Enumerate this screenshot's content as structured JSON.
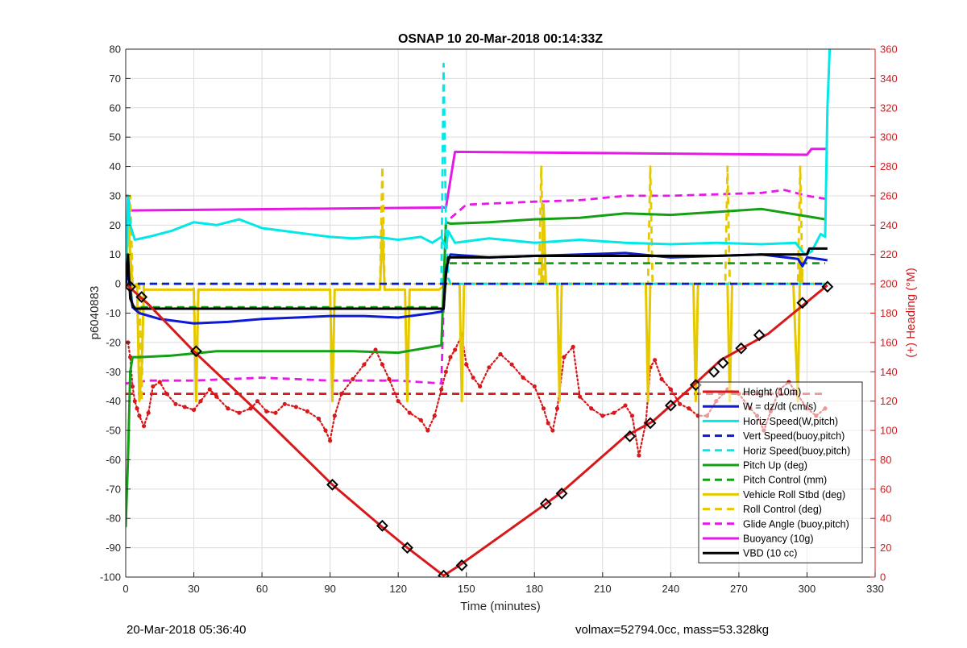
{
  "figure": {
    "footer_left": "20-Mar-2018 05:36:40",
    "footer_right": "volmax=52794.0cc, mass=53.328kg"
  },
  "chart_data": {
    "type": "line",
    "title": "OSNAP 10 20-Mar-2018 00:14:33Z",
    "xlabel": "Time (minutes)",
    "ylabel": "p6040883",
    "y2label": "(+) Heading (°M)",
    "xlim": [
      0,
      330
    ],
    "ylim": [
      -100,
      80
    ],
    "y2lim": [
      0,
      360
    ],
    "xticks": [
      0,
      30,
      60,
      90,
      120,
      150,
      180,
      210,
      240,
      270,
      300,
      330
    ],
    "yticks": [
      -100,
      -90,
      -80,
      -70,
      -60,
      -50,
      -40,
      -30,
      -20,
      -10,
      0,
      10,
      20,
      30,
      40,
      50,
      60,
      70,
      80
    ],
    "y2ticks": [
      0,
      20,
      40,
      60,
      80,
      100,
      120,
      140,
      160,
      180,
      200,
      220,
      240,
      260,
      280,
      300,
      320,
      340,
      360
    ],
    "grid": true,
    "legend_position": "lower-right",
    "colors": {
      "red": "#d7191c",
      "blue": "#0a1ad6",
      "cyan": "#00e8e8",
      "green": "#14a014",
      "yellow": "#e6c800",
      "magenta": "#e619e6",
      "black": "#000000"
    },
    "series": [
      {
        "name": "Height (10m)",
        "color": "#d7191c",
        "style": "solid",
        "marker": "diamond-black",
        "x": [
          0,
          10,
          30,
          60,
          91,
          113,
          124,
          140,
          147,
          185,
          192,
          220,
          232,
          248,
          262,
          283,
          309
        ],
        "y": [
          0,
          -7,
          -23,
          -45,
          -68.5,
          -83,
          -90,
          -99.5,
          -96,
          -75,
          -71,
          -52,
          -47,
          -36,
          -26,
          -17,
          -0.5
        ],
        "markers_x": [
          2,
          7,
          31,
          91,
          113,
          124,
          140,
          148,
          185,
          192,
          222,
          231,
          240,
          251,
          259,
          263,
          271,
          279,
          298,
          309
        ],
        "markers_y": [
          -1,
          -4.5,
          -23,
          -68.5,
          -82.5,
          -90,
          -99.5,
          -96,
          -75,
          -71.5,
          -52,
          -47.5,
          -41.5,
          -34.5,
          -30,
          -27,
          -22,
          -17.5,
          -6.5,
          -1
        ]
      },
      {
        "name": "W = dz/dt (cm/s)",
        "color": "#0a1ad6",
        "style": "solid",
        "x": [
          0,
          1,
          2,
          3,
          6,
          15,
          30,
          45,
          60,
          75,
          90,
          105,
          120,
          135,
          139,
          140,
          141,
          143,
          160,
          180,
          200,
          220,
          240,
          260,
          280,
          296,
          298,
          300,
          305,
          309
        ],
        "y": [
          -1,
          5,
          -2,
          -8,
          -10,
          -12,
          -13.5,
          -13,
          -12,
          -11.5,
          -11,
          -11,
          -11.5,
          -10,
          -9.5,
          -8.5,
          5,
          10,
          9,
          9.5,
          10,
          10.5,
          9,
          9.5,
          10,
          8.5,
          6,
          9,
          8.5,
          8
        ]
      },
      {
        "name": "Horiz Speed(W,pitch)",
        "color": "#00e8e8",
        "style": "solid",
        "x": [
          0,
          1,
          2,
          4,
          10,
          20,
          30,
          40,
          50,
          60,
          70,
          80,
          90,
          100,
          110,
          120,
          130,
          135,
          139,
          141,
          142,
          145,
          160,
          180,
          200,
          220,
          240,
          260,
          280,
          295,
          299,
          302,
          306,
          308,
          309,
          310
        ],
        "y": [
          0,
          30,
          20,
          15,
          16,
          18,
          21,
          20,
          22,
          19,
          18,
          17,
          16,
          15.5,
          16,
          15,
          16,
          14,
          16,
          12,
          18,
          14,
          15.5,
          14,
          15,
          14,
          13.5,
          14,
          13.5,
          14,
          10,
          11,
          17,
          16,
          60,
          80
        ]
      },
      {
        "name": "Vert Speed(buoy,pitch)",
        "color": "#0a1ad6",
        "style": "dashed",
        "x": [
          0,
          2,
          140,
          141,
          308
        ],
        "y": [
          0,
          0,
          0,
          0,
          0
        ]
      },
      {
        "name": "Horiz Speed(buoy,pitch)",
        "color": "#00e8e8",
        "style": "dashed",
        "x": [
          0,
          139,
          140,
          141,
          142,
          143,
          308
        ],
        "y": [
          0,
          0,
          75,
          20,
          2,
          0,
          0
        ]
      },
      {
        "name": "Pitch Up (deg)",
        "color": "#14a014",
        "style": "solid",
        "x": [
          0,
          1,
          2,
          3,
          6,
          20,
          40,
          60,
          80,
          100,
          120,
          139,
          141,
          143,
          160,
          180,
          200,
          220,
          240,
          260,
          280,
          300,
          308
        ],
        "y": [
          -83,
          -60,
          -30,
          -25,
          -25,
          -24.5,
          -23,
          -23,
          -23,
          -23,
          -23.5,
          -21,
          21,
          20.5,
          21,
          22,
          22.5,
          24,
          23.5,
          24.5,
          25.5,
          23,
          22
        ]
      },
      {
        "name": "Pitch Control (mm)",
        "color": "#14a014",
        "style": "dashed",
        "x": [
          0,
          2,
          3,
          140,
          141,
          308
        ],
        "y": [
          0,
          0,
          -8,
          -8,
          7,
          7
        ]
      },
      {
        "name": "Vehicle Roll Stbd (deg)",
        "color": "#e6c800",
        "style": "solid",
        "x": [
          0,
          1,
          2,
          3,
          5,
          6,
          7,
          8,
          10,
          30,
          31,
          32,
          90,
          91,
          92,
          112,
          113,
          114,
          123,
          124,
          125,
          138,
          141,
          147,
          148,
          149,
          150,
          183,
          184,
          185,
          190,
          191,
          192,
          200,
          229,
          230,
          231,
          250,
          251,
          252,
          265,
          266,
          267,
          280,
          294,
          296,
          297,
          298,
          300,
          308
        ],
        "y": [
          -2,
          25,
          10,
          -1,
          0,
          -40,
          -30,
          -2,
          -2,
          -2,
          -40,
          -2,
          -2,
          -40,
          -2,
          -2,
          20,
          -2,
          -2,
          -40,
          -2,
          -2,
          0,
          0,
          -40,
          0,
          0,
          0,
          27,
          0,
          0,
          -40,
          0,
          0,
          0,
          -40,
          0,
          0,
          -40,
          0,
          0,
          -40,
          0,
          0,
          0,
          -40,
          10,
          0,
          0,
          0
        ]
      },
      {
        "name": "Roll Control (deg)",
        "color": "#e6c800",
        "style": "dashed",
        "x": [
          0,
          2,
          3,
          4,
          6,
          7,
          8,
          30,
          31,
          32,
          112,
          113,
          114,
          141,
          182,
          183,
          184,
          230,
          231,
          232,
          264,
          265,
          266,
          296,
          297,
          298,
          308
        ],
        "y": [
          0,
          30,
          0,
          0,
          0,
          -40,
          0,
          0,
          -40,
          0,
          0,
          40,
          0,
          0,
          0,
          40,
          0,
          0,
          40,
          0,
          0,
          40,
          0,
          0,
          40,
          0,
          0
        ]
      },
      {
        "name": "Glide Angle (buoy,pitch)",
        "color": "#e619e6",
        "style": "dashed",
        "x": [
          0,
          10,
          30,
          60,
          90,
          120,
          139,
          141,
          150,
          180,
          200,
          220,
          240,
          260,
          280,
          290,
          300,
          308
        ],
        "y": [
          -34,
          -33,
          -33,
          -32,
          -33,
          -33,
          -34,
          21,
          27,
          28,
          28.5,
          30,
          30,
          30.5,
          31,
          32,
          30,
          29
        ]
      },
      {
        "name": "Buoyancy (10g)",
        "color": "#e619e6",
        "style": "solid",
        "x": [
          0,
          1,
          2,
          140,
          141,
          145,
          300,
          302,
          309
        ],
        "y": [
          30,
          30,
          25,
          26,
          26,
          45,
          44,
          46,
          46
        ]
      },
      {
        "name": "VBD (10 cc)",
        "color": "#000000",
        "style": "solid",
        "x": [
          0,
          1,
          2,
          3,
          4,
          5,
          6,
          140,
          141,
          142,
          160,
          180,
          200,
          220,
          240,
          260,
          280,
          300,
          301,
          309
        ],
        "y": [
          -1,
          10,
          -5,
          -7,
          -8.5,
          -8.5,
          -8.5,
          -8.5,
          3,
          9,
          9,
          9.5,
          9.5,
          9.5,
          9.5,
          9.5,
          10,
          10,
          12,
          12
        ]
      },
      {
        "name": "Heading (°M)",
        "axis": "y2",
        "color": "#d7191c",
        "style": "dotted-markers",
        "legend": false,
        "x": [
          1,
          2,
          3,
          4,
          5,
          6,
          8,
          10,
          12,
          15,
          18,
          22,
          26,
          30,
          33,
          37,
          40,
          45,
          50,
          55,
          58,
          62,
          66,
          70,
          75,
          80,
          85,
          88,
          90,
          92,
          95,
          100,
          105,
          110,
          113,
          116,
          120,
          125,
          130,
          133,
          136,
          139,
          141,
          143,
          145,
          148,
          150,
          153,
          156,
          160,
          165,
          170,
          175,
          180,
          184,
          186,
          188,
          190,
          193,
          197,
          200,
          205,
          210,
          215,
          220,
          223,
          226,
          229,
          231,
          233,
          236,
          240,
          244,
          248,
          252,
          256,
          260,
          265,
          270,
          275,
          278,
          281,
          284,
          288,
          292,
          296,
          300,
          304,
          308
        ],
        "y": [
          160,
          150,
          130,
          120,
          115,
          110,
          103,
          112,
          130,
          133,
          125,
          118,
          116,
          114,
          120,
          128,
          123,
          115,
          112,
          115,
          120,
          113,
          112,
          118,
          116,
          113,
          108,
          100,
          93,
          110,
          125,
          135,
          145,
          155,
          145,
          135,
          120,
          112,
          107,
          100,
          110,
          128,
          140,
          150,
          155,
          165,
          145,
          136,
          130,
          143,
          152,
          145,
          136,
          130,
          115,
          105,
          100,
          115,
          150,
          157,
          123,
          115,
          110,
          112,
          117,
          110,
          83,
          105,
          143,
          148,
          135,
          128,
          118,
          115,
          110,
          110,
          120,
          128,
          125,
          115,
          110,
          100,
          113,
          128,
          133,
          124,
          115,
          110,
          115
        ]
      },
      {
        "name": "Heading target",
        "axis": "y2",
        "color": "#d7191c",
        "style": "dashed",
        "legend": false,
        "x": [
          0,
          308
        ],
        "y": [
          125,
          125
        ]
      }
    ]
  }
}
